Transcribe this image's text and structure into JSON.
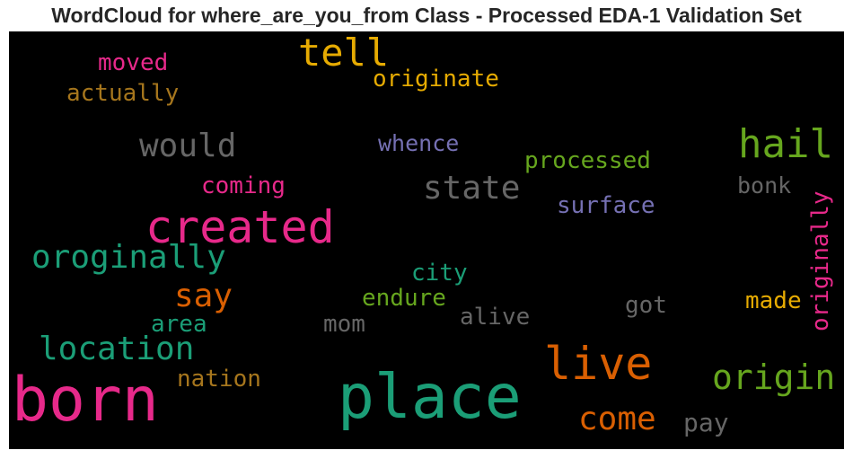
{
  "title": "WordCloud for where_are_you_from Class - Processed EDA-1 Validation Set",
  "words": [
    {
      "text": "moved",
      "color": "#e7298a"
    },
    {
      "text": "tell",
      "color": "#e6ab02"
    },
    {
      "text": "actually",
      "color": "#a6761d"
    },
    {
      "text": "originate",
      "color": "#e6ab02"
    },
    {
      "text": "would",
      "color": "#666666"
    },
    {
      "text": "whence",
      "color": "#7570b3"
    },
    {
      "text": "hail",
      "color": "#66a61e"
    },
    {
      "text": "processed",
      "color": "#66a61e"
    },
    {
      "text": "coming",
      "color": "#e7298a"
    },
    {
      "text": "state",
      "color": "#666666"
    },
    {
      "text": "bonk",
      "color": "#666666"
    },
    {
      "text": "created",
      "color": "#e7298a"
    },
    {
      "text": "surface",
      "color": "#7570b3"
    },
    {
      "text": "originally",
      "color": "#e7298a"
    },
    {
      "text": "oroginally",
      "color": "#1b9e77"
    },
    {
      "text": "city",
      "color": "#1b9e77"
    },
    {
      "text": "say",
      "color": "#d95f02"
    },
    {
      "text": "endure",
      "color": "#66a61e"
    },
    {
      "text": "made",
      "color": "#e6ab02"
    },
    {
      "text": "got",
      "color": "#666666"
    },
    {
      "text": "area",
      "color": "#1b9e77"
    },
    {
      "text": "mom",
      "color": "#666666"
    },
    {
      "text": "alive",
      "color": "#666666"
    },
    {
      "text": "location",
      "color": "#1b9e77"
    },
    {
      "text": "live",
      "color": "#d95f02"
    },
    {
      "text": "nation",
      "color": "#a6761d"
    },
    {
      "text": "origin",
      "color": "#66a61e"
    },
    {
      "text": "born",
      "color": "#e7298a"
    },
    {
      "text": "place",
      "color": "#1b9e77"
    },
    {
      "text": "come",
      "color": "#d95f02"
    },
    {
      "text": "pay",
      "color": "#666666"
    }
  ]
}
